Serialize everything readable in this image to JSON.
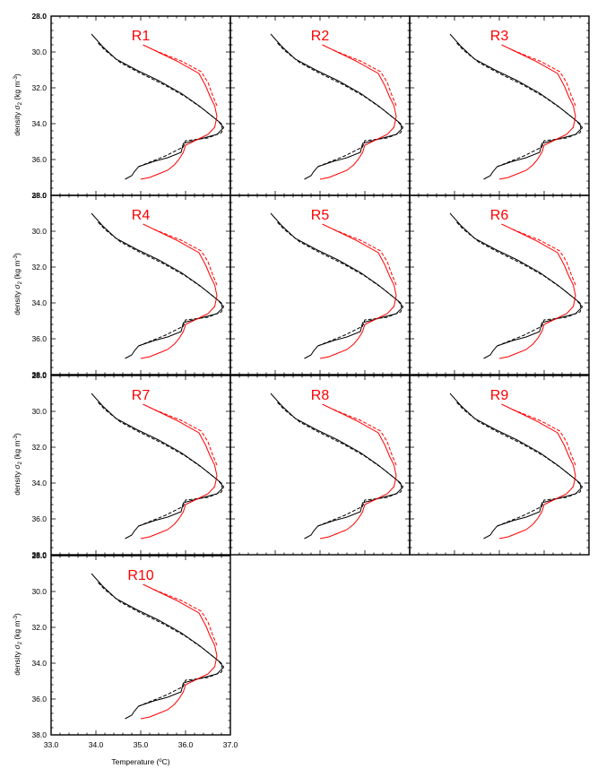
{
  "figure": {
    "ylabel_main": "density ",
    "ylabel_sym": "σ",
    "ylabel_sub": "2",
    "ylabel_unit_pre": " (kg m",
    "ylabel_unit_sup": "-3",
    "ylabel_unit_post": ")",
    "xlabel_main": "Temperature (",
    "xlabel_deg": "o",
    "xlabel_post": "C)"
  },
  "colors": {
    "control": "#000000",
    "experiment": "#ff0000",
    "frame": "#000000"
  },
  "chart_data": [
    {
      "type": "line",
      "panels": [
        "R1",
        "R2",
        "R3",
        "R4",
        "R5",
        "R6",
        "R7",
        "R8",
        "R9",
        "R10"
      ],
      "xlim": [
        33.0,
        37.0
      ],
      "ylim": [
        28.0,
        38.0
      ],
      "y_inverted": true,
      "x_ticks": [
        "33.0",
        "34.0",
        "35.0",
        "36.0",
        "37.0"
      ],
      "y_ticks": [
        "28.0",
        "30.0",
        "32.0",
        "34.0",
        "36.0",
        "38.0"
      ],
      "series": [
        {
          "style": "solid",
          "color": "#000000",
          "x": [
            33.9,
            34.15,
            34.45,
            34.9,
            35.4,
            35.9,
            36.3,
            36.6,
            36.8,
            36.82,
            36.7,
            36.4,
            35.95,
            35.9,
            35.6,
            35.3,
            34.95,
            34.85,
            34.8,
            34.65
          ],
          "y": [
            29.0,
            29.7,
            30.4,
            31.0,
            31.6,
            32.3,
            33.0,
            33.6,
            34.0,
            34.3,
            34.6,
            34.8,
            35.1,
            35.6,
            35.9,
            36.1,
            36.4,
            36.7,
            36.9,
            37.1
          ]
        },
        {
          "style": "dashed",
          "color": "#000000",
          "x": [
            34.05,
            34.2,
            34.55,
            35.0,
            35.5,
            36.0,
            36.4,
            36.7,
            36.85,
            36.8,
            36.5,
            36.0,
            35.95,
            35.55,
            35.25,
            34.95
          ],
          "y": [
            29.5,
            29.9,
            30.6,
            31.2,
            31.8,
            32.5,
            33.2,
            33.8,
            34.2,
            34.5,
            34.8,
            34.95,
            35.3,
            35.8,
            36.1,
            36.4
          ]
        },
        {
          "style": "solid",
          "color": "#ff0000",
          "x": [
            35.05,
            35.8,
            36.3,
            36.45,
            36.55,
            36.65,
            36.7,
            36.65,
            36.5,
            36.25,
            36.0,
            35.95,
            35.85,
            35.75,
            35.6,
            35.4,
            35.2,
            35.0
          ],
          "y": [
            29.6,
            30.5,
            31.2,
            31.9,
            32.5,
            33.0,
            33.6,
            34.2,
            34.6,
            34.9,
            35.2,
            35.6,
            36.0,
            36.3,
            36.6,
            36.8,
            37.0,
            37.1
          ]
        },
        {
          "style": "dashed",
          "color": "#ff0000",
          "x": [
            35.3,
            35.9,
            36.35,
            36.5,
            36.6,
            36.7
          ],
          "y": [
            29.9,
            30.5,
            31.1,
            31.7,
            32.4,
            33.0
          ]
        }
      ],
      "annotations": []
    }
  ]
}
